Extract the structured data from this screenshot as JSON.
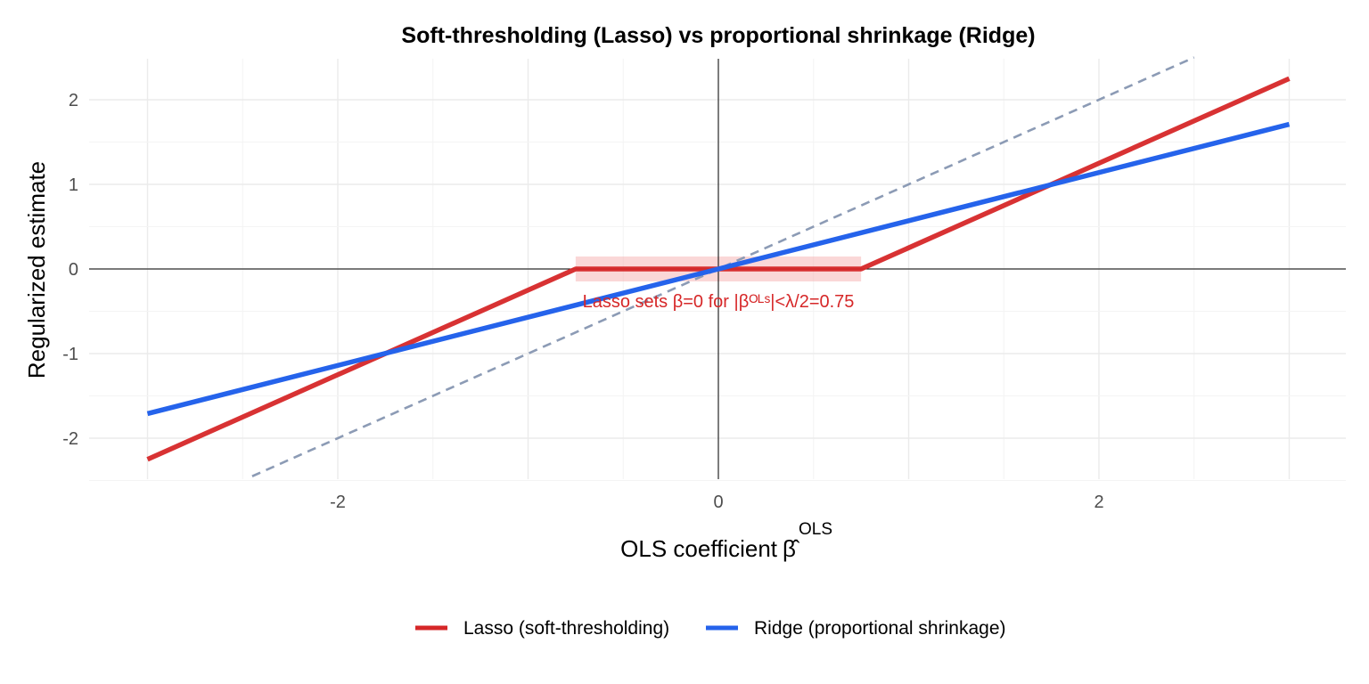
{
  "chart_data": {
    "type": "line",
    "title": "Soft-thresholding (Lasso) vs proportional shrinkage (Ridge)",
    "xlabel_prefix": "OLS coefficient",
    "xlabel_symbol": "β̂",
    "xlabel_superscript": "OLS",
    "ylabel": "Regularized estimate",
    "xlim": [
      -3.0,
      3.0
    ],
    "ylim": [
      -2.5,
      2.5
    ],
    "x_ticks": [
      -2,
      0,
      2
    ],
    "y_ticks": [
      -2,
      -1,
      0,
      1,
      2
    ],
    "lambda_half": 0.75,
    "series": [
      {
        "name": "Lasso (soft-thresholding)",
        "color": "#d62728",
        "x": [
          -3.0,
          -0.75,
          0.75,
          3.0
        ],
        "y": [
          -2.25,
          0.0,
          0.0,
          2.25
        ]
      },
      {
        "name": "Ridge (proportional shrinkage)",
        "color": "#2563eb",
        "x": [
          -3.0,
          3.0
        ],
        "y": [
          -1.71,
          1.71
        ]
      }
    ],
    "identity_line": {
      "color": "#8c9bb5",
      "x": [
        -2.45,
        2.5
      ],
      "y": [
        -2.45,
        2.5
      ]
    },
    "zero_band": {
      "x_range": [
        -0.75,
        0.75
      ],
      "color": "#f4a6a6"
    },
    "annotation": {
      "text": "Lasso sets β=0 for |βᴼᴸˢ|<λ/2=0.75",
      "x": 0,
      "y": -0.38
    },
    "legend": {
      "position": "bottom",
      "items": [
        "Lasso (soft-thresholding)",
        "Ridge (proportional shrinkage)"
      ]
    }
  }
}
